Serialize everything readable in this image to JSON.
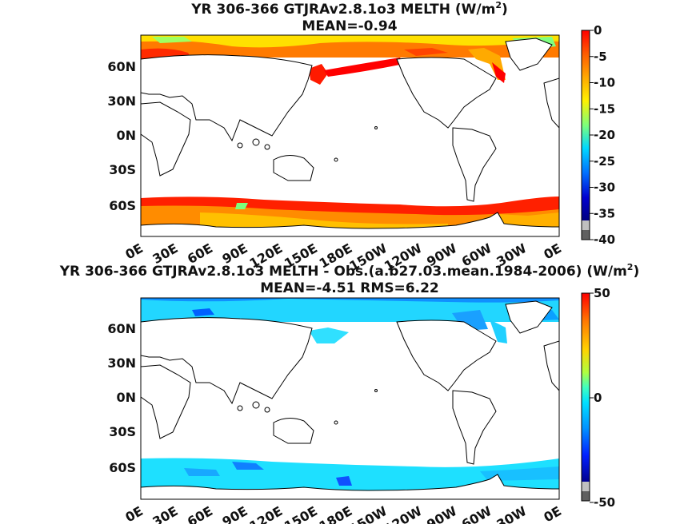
{
  "colors": {
    "background": "#ffffff",
    "coastline": "#000000",
    "missing": "#7f7f7f"
  },
  "panels": [
    {
      "id": "panel-1",
      "title": "YR 306-366 GTJRAv2.8.1o3  MELTH (W/m",
      "title_sup": "2",
      "title_end": ")",
      "subtitle": "MEAN=-0.94",
      "lat_labels": [
        "60N",
        "30N",
        "0N",
        "30S",
        "60S"
      ],
      "lon_labels": [
        "0E",
        "30E",
        "60E",
        "90E",
        "120E",
        "150E",
        "180E",
        "150W",
        "120W",
        "90W",
        "60W",
        "30W",
        "0E"
      ],
      "colorbar": {
        "ticks": [
          "0",
          "-5",
          "-10",
          "-15",
          "-20",
          "-25",
          "-30",
          "-35",
          "-40"
        ],
        "min": -40,
        "max": 0
      }
    },
    {
      "id": "panel-2",
      "title": "YR 306-366 GTJRAv2.8.1o3 MELTH - Obs.(a.b27.03.mean.1984-2006) (W/m",
      "title_sup": "2",
      "title_end": ")",
      "subtitle": "MEAN=-4.51 RMS=6.22",
      "lat_labels": [
        "60N",
        "30N",
        "0N",
        "30S",
        "60S"
      ],
      "lon_labels": [
        "0E",
        "30E",
        "60E",
        "90E",
        "120E",
        "150E",
        "180E",
        "150W",
        "120W",
        "90W",
        "60W",
        "30W",
        "0E"
      ],
      "colorbar": {
        "ticks": [
          "50",
          "0",
          "-50"
        ],
        "min": -50,
        "max": 50
      }
    }
  ]
}
